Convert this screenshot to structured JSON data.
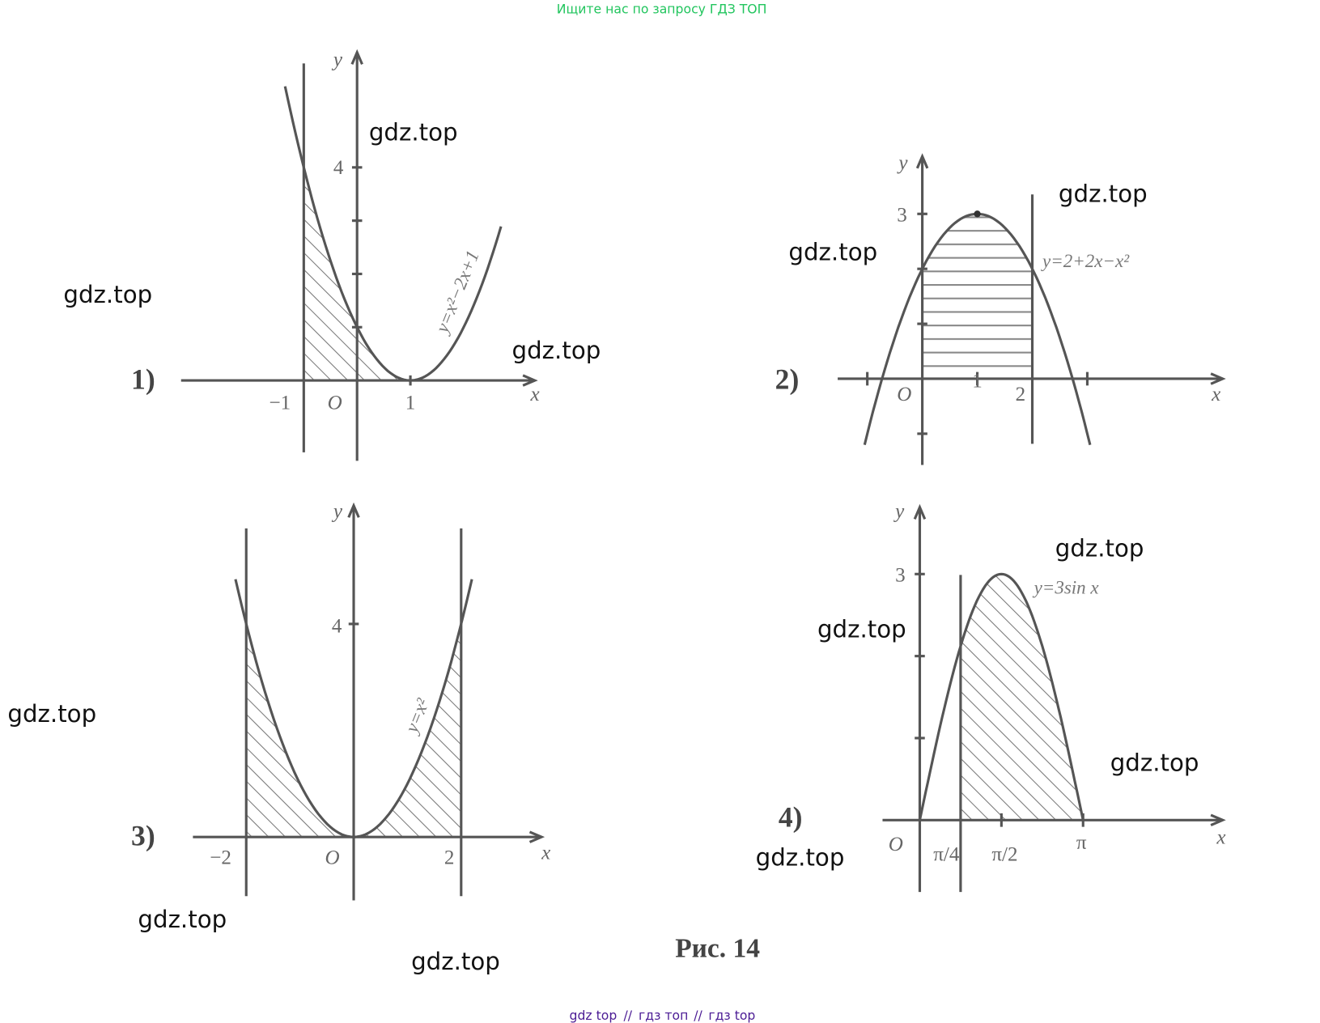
{
  "header": {
    "notice": "Ищите нас по запросу ГДЗ ТОП"
  },
  "figures": [
    {
      "label": "1)",
      "formula": "y=x²−2x+1",
      "axis_x": "x",
      "axis_y": "y",
      "ticks": [
        "−1",
        "O",
        "1",
        "4"
      ]
    },
    {
      "label": "2)",
      "formula": "y=2+2x−x²",
      "axis_x": "x",
      "axis_y": "y",
      "ticks": [
        "O",
        "1",
        "2",
        "3"
      ]
    },
    {
      "label": "3)",
      "formula": "y=x²",
      "axis_x": "x",
      "axis_y": "y",
      "ticks": [
        "−2",
        "O",
        "2",
        "4"
      ]
    },
    {
      "label": "4)",
      "formula": "y=3sin x",
      "axis_x": "x",
      "axis_y": "y",
      "ticks": [
        "O",
        "π/4",
        "π/2",
        "π",
        "3"
      ]
    }
  ],
  "caption": "Рис. 14",
  "watermarks": [
    "gdz.top",
    "gdz.top",
    "gdz.top",
    "gdz.top",
    "gdz.top",
    "gdz.top",
    "gdz.top",
    "gdz.top",
    "gdz.top",
    "gdz.top",
    "gdz.top",
    "gdz.top"
  ],
  "footer": {
    "links": [
      "gdz top",
      "гдз топ",
      "гдз top"
    ],
    "separator": "//"
  }
}
